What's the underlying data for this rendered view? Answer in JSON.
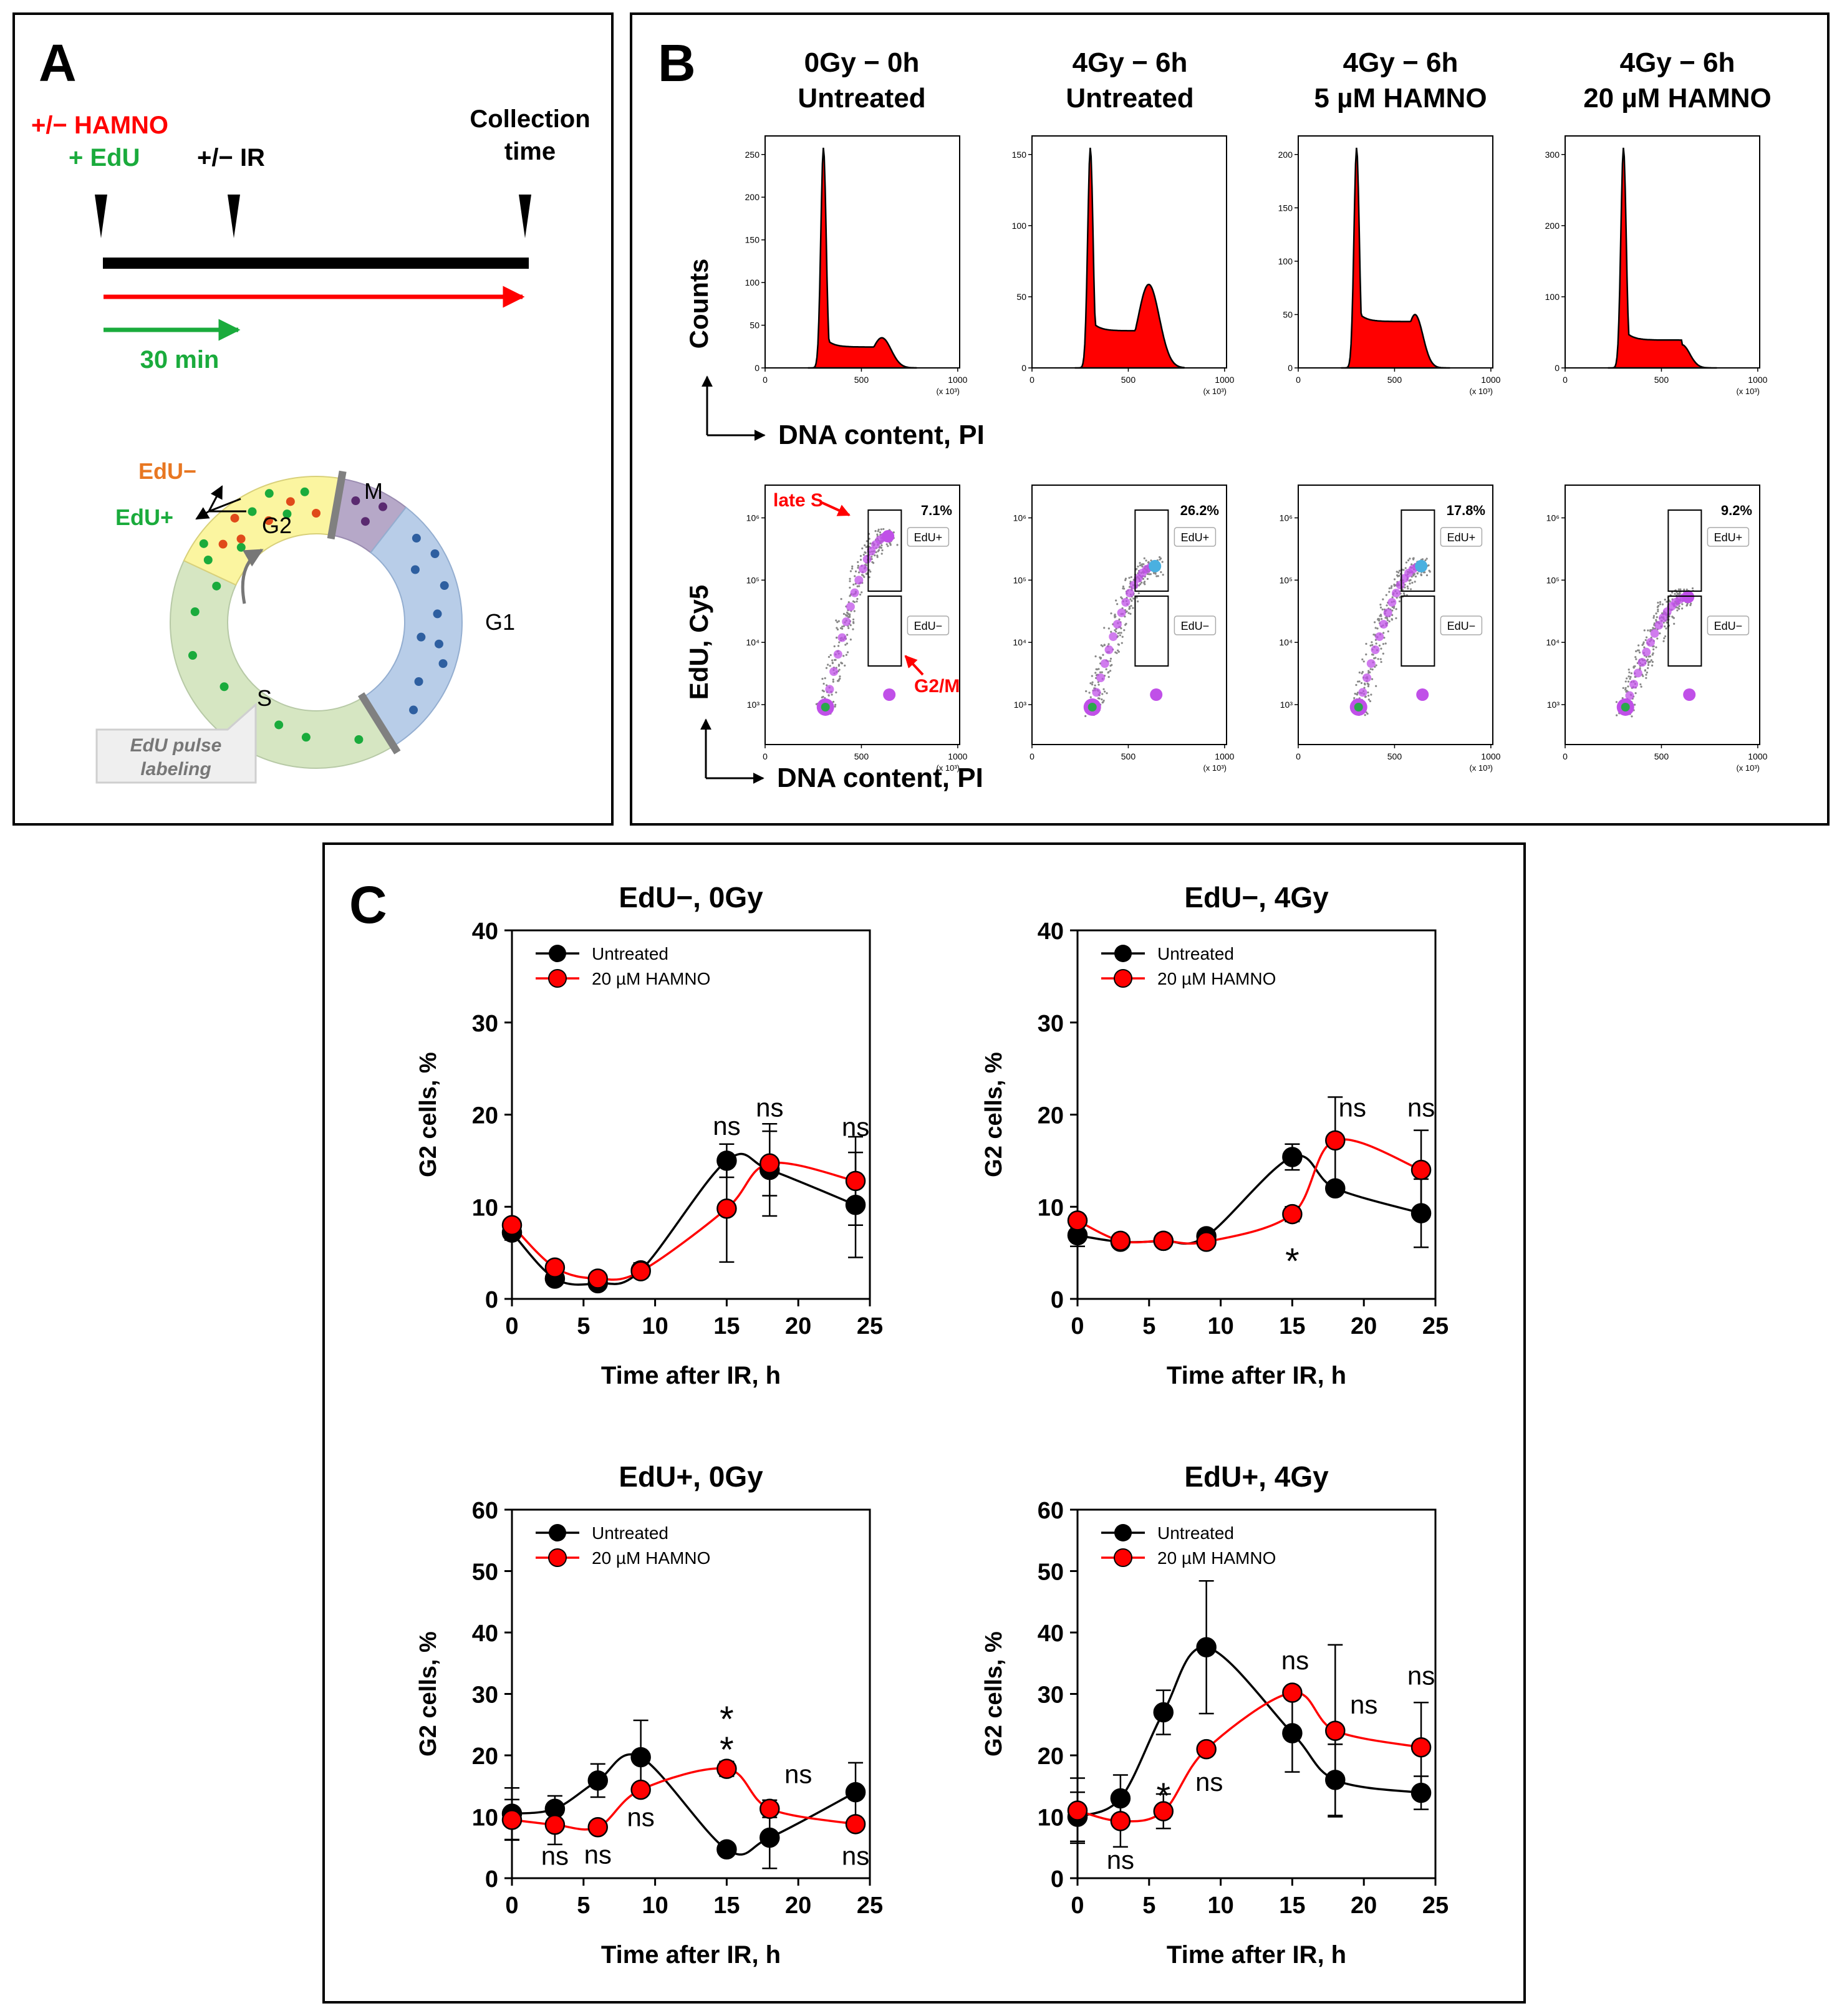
{
  "colors": {
    "red": "#ff0000",
    "green": "#1aab3c",
    "black": "#000000",
    "orange": "#e87722",
    "s_phase": "#d6e6c2",
    "g2_phase": "#fbf5a0",
    "m_phase": "#b6a8c8",
    "g1_phase": "#b8cde8",
    "dot_g1": "#2e5fa0",
    "dot_s": "#1aab3c",
    "dot_g2_red": "#e04a1a",
    "dot_m": "#5a2a70"
  },
  "panelA": {
    "letter": "A",
    "hamno_label": "+/− HAMNO",
    "edu_label": "+ EdU",
    "ir_label": "+/− IR",
    "collection_label_1": "Collection",
    "collection_label_2": "time",
    "duration_label": "30 min",
    "edu_minus": "EdU−",
    "edu_plus": "EdU+",
    "phase_g2": "G2",
    "phase_m": "M",
    "phase_g1": "G1",
    "phase_s": "S",
    "callout_line1": "EdU pulse",
    "callout_line2": "labeling"
  },
  "panelB": {
    "letter": "B",
    "columns": [
      {
        "line1": "0Gy − 0h",
        "line2": "Untreated",
        "gate_pct": "7.1%"
      },
      {
        "line1": "4Gy − 6h",
        "line2": "Untreated",
        "gate_pct": "26.2%"
      },
      {
        "line1": "4Gy − 6h",
        "line2": "5 µM HAMNO",
        "gate_pct": "17.8%"
      },
      {
        "line1": "4Gy − 6h",
        "line2": "20 µM HAMNO",
        "gate_pct": "9.2%"
      }
    ],
    "hist_ylabel": "Counts",
    "scatter_ylabel": "EdU, Cy5",
    "xlabel": "DNA content, PI",
    "x_ticks": [
      "0",
      "500",
      "1000"
    ],
    "x_unit": "(x 10³)",
    "hist_yticks": [
      [
        "0",
        "50",
        "100",
        "150",
        "200",
        "250"
      ],
      [
        "0",
        "50",
        "100",
        "150"
      ],
      [
        "0",
        "50",
        "100",
        "150",
        "200"
      ],
      [
        "0",
        "100",
        "200",
        "300"
      ]
    ],
    "scatter_yticks": [
      "10³",
      "10⁴",
      "10⁵",
      "10⁶"
    ],
    "gate_upper": "EdU+",
    "gate_lower": "EdU−",
    "annot_late_s": "late S",
    "annot_g2m": "G2/M"
  },
  "chart_data": [
    {
      "type": "line",
      "panel": "C",
      "title": "EdU−, 0Gy",
      "xlabel": "Time after IR, h",
      "ylabel": "G2 cells, %",
      "xlim": [
        0,
        25
      ],
      "ylim": [
        0,
        40
      ],
      "xticks": [
        0,
        5,
        10,
        15,
        20,
        25
      ],
      "yticks": [
        0,
        10,
        20,
        30,
        40
      ],
      "x": [
        0,
        3,
        6,
        9,
        15,
        18,
        24
      ],
      "series": [
        {
          "name": "Untreated",
          "color": "#000000",
          "values": [
            7.2,
            2.2,
            1.7,
            3.1,
            15.0,
            14.0,
            10.2
          ],
          "errors": [
            0.8,
            0.6,
            0.5,
            0.8,
            1.8,
            5.0,
            5.7
          ]
        },
        {
          "name": "20 µM HAMNO",
          "color": "#ff0000",
          "values": [
            8.0,
            3.4,
            2.2,
            3.0,
            9.8,
            14.7,
            12.8
          ],
          "errors": [
            0.5,
            0.5,
            0.4,
            0.6,
            5.8,
            3.5,
            4.8
          ]
        }
      ],
      "annotations": [
        {
          "x": 15,
          "y": 17.8,
          "text": "ns"
        },
        {
          "x": 18,
          "y": 19.8,
          "text": "ns"
        },
        {
          "x": 24,
          "y": 17.7,
          "text": "ns"
        }
      ]
    },
    {
      "type": "line",
      "panel": "C",
      "title": "EdU−, 4Gy",
      "xlabel": "Time after IR, h",
      "ylabel": "G2 cells, %",
      "xlim": [
        0,
        25
      ],
      "ylim": [
        0,
        40
      ],
      "xticks": [
        0,
        5,
        10,
        15,
        20,
        25
      ],
      "yticks": [
        0,
        10,
        20,
        30,
        40
      ],
      "x": [
        0,
        3,
        6,
        9,
        15,
        18,
        24
      ],
      "series": [
        {
          "name": "Untreated",
          "color": "#000000",
          "values": [
            6.9,
            6.2,
            6.3,
            6.8,
            15.4,
            12.0,
            9.3
          ],
          "errors": [
            1.2,
            0.6,
            0.5,
            0.5,
            1.4,
            0.5,
            3.7
          ]
        },
        {
          "name": "20 µM HAMNO",
          "color": "#ff0000",
          "values": [
            8.5,
            6.3,
            6.3,
            6.2,
            9.2,
            17.2,
            14.0
          ],
          "errors": [
            0.5,
            0.5,
            0.5,
            0.6,
            0.8,
            4.7,
            4.3
          ]
        }
      ],
      "annotations": [
        {
          "x": 15,
          "y": 4.5,
          "text": "*"
        },
        {
          "x": 19.2,
          "y": 19.8,
          "text": "ns"
        },
        {
          "x": 24,
          "y": 19.8,
          "text": "ns"
        }
      ]
    },
    {
      "type": "line",
      "panel": "C",
      "title": "EdU+, 0Gy",
      "xlabel": "Time after IR, h",
      "ylabel": "G2 cells, %",
      "xlim": [
        0,
        25
      ],
      "ylim": [
        0,
        60
      ],
      "xticks": [
        0,
        5,
        10,
        15,
        20,
        25
      ],
      "yticks": [
        0,
        10,
        20,
        30,
        40,
        50,
        60
      ],
      "x": [
        0,
        3,
        6,
        9,
        15,
        18,
        24
      ],
      "series": [
        {
          "name": "Untreated",
          "color": "#000000",
          "values": [
            10.5,
            11.3,
            15.9,
            19.7,
            4.7,
            6.6,
            14.0
          ],
          "errors": [
            4.2,
            2.1,
            2.7,
            6.0,
            0.6,
            5.0,
            4.8
          ]
        },
        {
          "name": "20 µM HAMNO",
          "color": "#ff0000",
          "values": [
            9.5,
            8.7,
            8.3,
            14.4,
            17.8,
            11.3,
            8.8
          ],
          "errors": [
            3.3,
            3.2,
            0.5,
            0.8,
            1.2,
            1.4,
            0.8
          ]
        }
      ],
      "annotations": [
        {
          "x": 3,
          "y": 2.2,
          "text": "ns"
        },
        {
          "x": 6,
          "y": 2.4,
          "text": "ns"
        },
        {
          "x": 9,
          "y": 8.5,
          "text": "ns"
        },
        {
          "x": 15,
          "y": 21.5,
          "text": "*"
        },
        {
          "x": 15,
          "y": 26.5,
          "text": "*"
        },
        {
          "x": 20,
          "y": 15.5,
          "text": "ns"
        },
        {
          "x": 24,
          "y": 2.2,
          "text": "ns"
        }
      ]
    },
    {
      "type": "line",
      "panel": "C",
      "title": "EdU+, 4Gy",
      "xlabel": "Time after IR, h",
      "ylabel": "G2 cells, %",
      "xlim": [
        0,
        25
      ],
      "ylim": [
        0,
        60
      ],
      "xticks": [
        0,
        5,
        10,
        15,
        20,
        25
      ],
      "yticks": [
        0,
        10,
        20,
        30,
        40,
        50,
        60
      ],
      "x": [
        0,
        3,
        6,
        9,
        15,
        18,
        24
      ],
      "series": [
        {
          "name": "Untreated",
          "color": "#000000",
          "values": [
            10.0,
            13.0,
            27.0,
            37.6,
            23.6,
            16.0,
            13.9
          ],
          "errors": [
            4.0,
            3.8,
            3.6,
            10.8,
            6.3,
            5.8,
            2.7
          ]
        },
        {
          "name": "20 µM HAMNO",
          "color": "#ff0000",
          "values": [
            11.0,
            9.3,
            10.9,
            21.0,
            30.2,
            24.0,
            21.3
          ],
          "errors": [
            5.3,
            4.2,
            2.8,
            0.5,
            0.5,
            14.0,
            7.3
          ]
        }
      ],
      "annotations": [
        {
          "x": 3,
          "y": 1.5,
          "text": "ns"
        },
        {
          "x": 6,
          "y": 14.0,
          "text": "*"
        },
        {
          "x": 9.2,
          "y": 14.2,
          "text": "ns"
        },
        {
          "x": 15.2,
          "y": 34.0,
          "text": "ns"
        },
        {
          "x": 20,
          "y": 26.8,
          "text": "ns"
        },
        {
          "x": 24,
          "y": 31.5,
          "text": "ns"
        }
      ]
    }
  ],
  "legend": {
    "untreated": "Untreated",
    "hamno20": "20 µM HAMNO"
  },
  "panelC_letter": "C"
}
